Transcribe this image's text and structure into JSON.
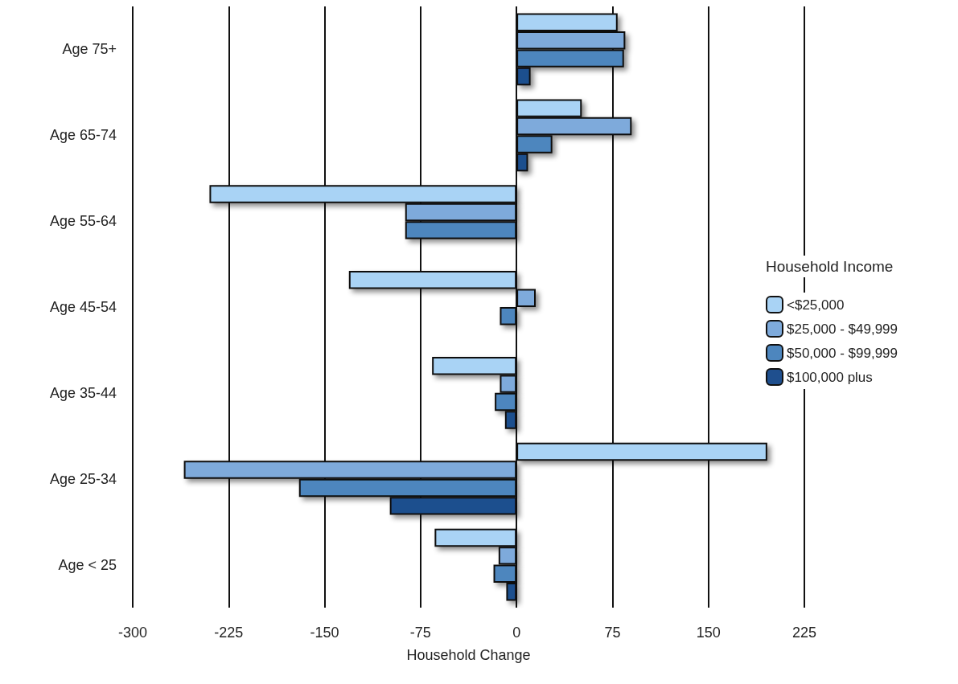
{
  "chart_data": {
    "type": "bar",
    "orientation": "horizontal",
    "xlabel": "Household Change",
    "legend_title": "Household Income",
    "categories": [
      "Age 75+",
      "Age 65-74",
      "Age 55-64",
      "Age 45-54",
      "Age 35-44",
      "Age 25-34",
      "Age < 25"
    ],
    "series": [
      {
        "name": "<$25,000",
        "color": "#a9d3f5",
        "values": [
          79,
          51,
          -240,
          -131,
          -66,
          196,
          -64
        ]
      },
      {
        "name": "$25,000 - $49,999",
        "color": "#7eaadb",
        "values": [
          85,
          90,
          -87,
          15,
          -13,
          -260,
          -14
        ]
      },
      {
        "name": "$50,000 - $99,999",
        "color": "#4d86be",
        "values": [
          84,
          28,
          -87,
          -13,
          -17,
          -170,
          -18
        ]
      },
      {
        "name": "$100,000 plus",
        "color": "#1f4f8e",
        "values": [
          11,
          9,
          null,
          null,
          -9,
          -99,
          -8
        ]
      }
    ],
    "xlim": [
      -300,
      225
    ],
    "xticks": [
      -300,
      -225,
      -150,
      -75,
      0,
      75,
      150,
      225
    ],
    "grid": "x",
    "legend": "right"
  }
}
